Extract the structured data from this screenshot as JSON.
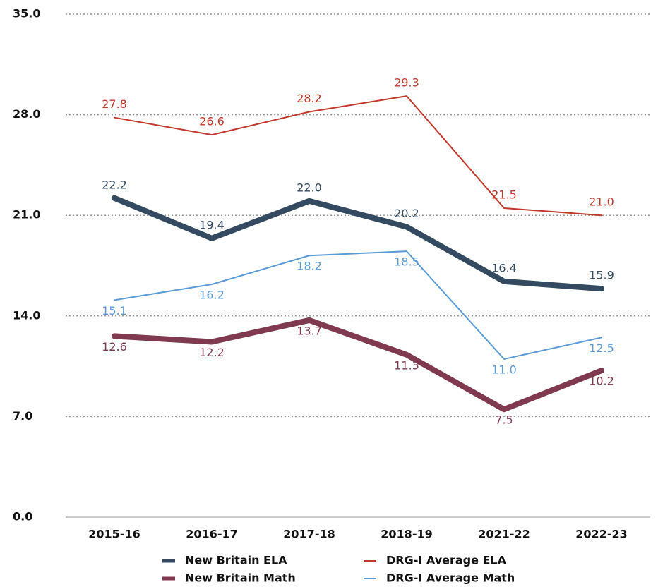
{
  "chart_data": {
    "type": "line",
    "categories": [
      "2015-16",
      "2016-17",
      "2017-18",
      "2018-19",
      "2021-22",
      "2022-23"
    ],
    "series": [
      {
        "name": "New Britain ELA",
        "color": "#334a60",
        "values": [
          22.2,
          19.4,
          22.0,
          20.2,
          16.4,
          15.9
        ],
        "value_labels": [
          "22.2",
          "19.4",
          "22.0",
          "20.2",
          "16.4",
          "15.9"
        ]
      },
      {
        "name": "DRG-I Average ELA",
        "color": "#c0392b",
        "values": [
          27.8,
          26.6,
          28.2,
          29.3,
          21.5,
          21.0
        ],
        "value_labels": [
          "27.8",
          "26.6",
          "28.2",
          "29.3",
          "21.5",
          "21.0"
        ]
      },
      {
        "name": "New Britain Math",
        "color": "#7f3a4f",
        "values": [
          12.6,
          12.2,
          13.7,
          11.3,
          7.5,
          10.2
        ],
        "value_labels": [
          "12.6",
          "12.2",
          "13.7",
          "11.3",
          "7.5",
          "10.2"
        ]
      },
      {
        "name": "DRG-I Average Math",
        "color": "#5b9bd5",
        "values": [
          15.1,
          16.2,
          18.2,
          18.5,
          11.0,
          12.5
        ],
        "value_labels": [
          "15.1",
          "16.2",
          "18.2",
          "18.5",
          "11.0",
          "12.5"
        ]
      }
    ],
    "ylim": [
      0,
      35
    ],
    "yticks": [
      {
        "value": 0,
        "label": "0.0"
      },
      {
        "value": 7,
        "label": "7.0"
      },
      {
        "value": 14,
        "label": "14.0"
      },
      {
        "value": 21,
        "label": "21.0"
      },
      {
        "value": 28,
        "label": "28.0"
      },
      {
        "value": 35,
        "label": "35.0"
      }
    ],
    "grid": true,
    "legend": "bottom"
  }
}
